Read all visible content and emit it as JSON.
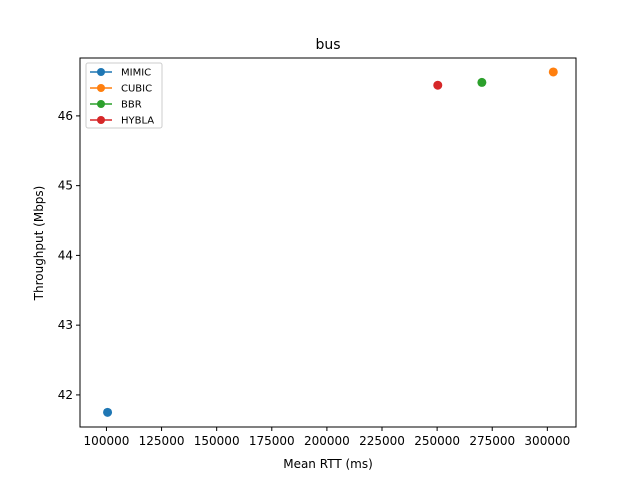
{
  "chart_data": {
    "type": "scatter",
    "title": "bus",
    "xlabel": "Mean RTT (ms)",
    "ylabel": "Throughput (Mbps)",
    "xlim": [
      88000,
      313000
    ],
    "ylim": [
      41.54,
      46.83
    ],
    "xticks": [
      100000,
      125000,
      150000,
      175000,
      200000,
      225000,
      250000,
      275000,
      300000
    ],
    "yticks": [
      42,
      43,
      44,
      45,
      46
    ],
    "grid": false,
    "legend_position": "top-left",
    "series": [
      {
        "name": "MIMIC",
        "color": "#1f77b4",
        "x": [
          100500
        ],
        "y": [
          41.75
        ]
      },
      {
        "name": "CUBIC",
        "color": "#ff7f0e",
        "x": [
          302700
        ],
        "y": [
          46.63
        ]
      },
      {
        "name": "BBR",
        "color": "#2ca02c",
        "x": [
          270300
        ],
        "y": [
          46.48
        ]
      },
      {
        "name": "HYBLA",
        "color": "#d62728",
        "x": [
          250300
        ],
        "y": [
          46.44
        ]
      }
    ]
  }
}
